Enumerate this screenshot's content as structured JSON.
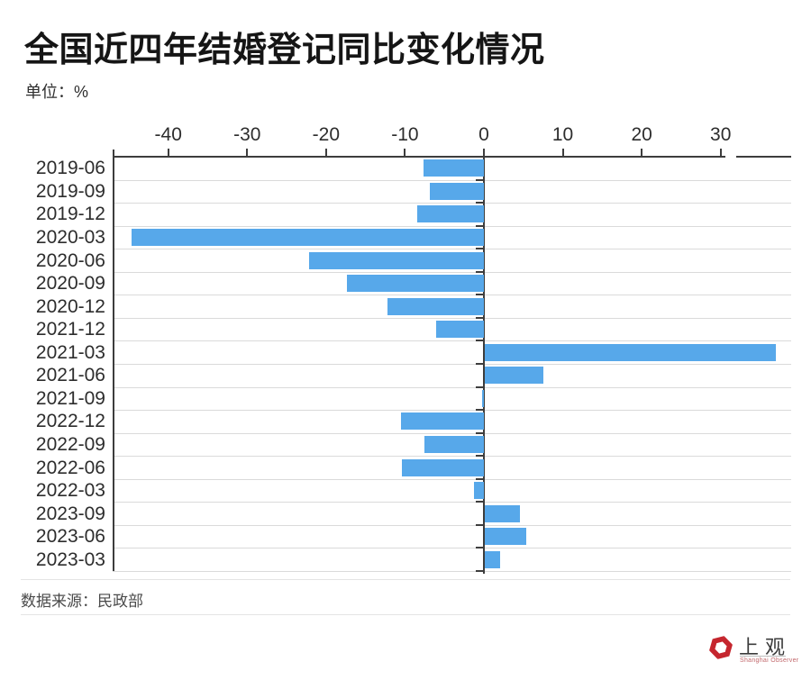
{
  "header": {
    "title": "全国近四年结婚登记同比变化情况",
    "unit_label": "单位：%"
  },
  "chart_data": {
    "type": "bar",
    "orientation": "horizontal",
    "title": "全国近四年结婚登记同比变化情况",
    "unit": "%",
    "categories": [
      "2019-06",
      "2019-09",
      "2019-12",
      "2020-03",
      "2020-06",
      "2020-09",
      "2020-12",
      "2021-12",
      "2021-03",
      "2021-06",
      "2021-09",
      "2022-12",
      "2022-09",
      "2022-06",
      "2022-03",
      "2023-09",
      "2023-06",
      "2023-03"
    ],
    "values": [
      -7.7,
      -6.9,
      -8.5,
      -44.7,
      -22.2,
      -17.4,
      -12.2,
      -6.1,
      36.9,
      7.4,
      -0.1,
      -10.5,
      -7.5,
      -10.4,
      -1.2,
      4.5,
      5.3,
      1.9
    ],
    "x_ticks": [
      -40,
      -30,
      -20,
      -10,
      0,
      10,
      20,
      30
    ],
    "xlim": [
      -47,
      39
    ],
    "grid": true,
    "legend": "none",
    "bar_color": "#57A8EA"
  },
  "footer": {
    "source": "数据来源：民政部"
  },
  "logo": {
    "name_cn": "上观",
    "name_en": "Shanghai Observer",
    "brand_red": "#C5262E"
  },
  "icons": {
    "logo_pinwheel": "pinwheel-hexagon"
  }
}
